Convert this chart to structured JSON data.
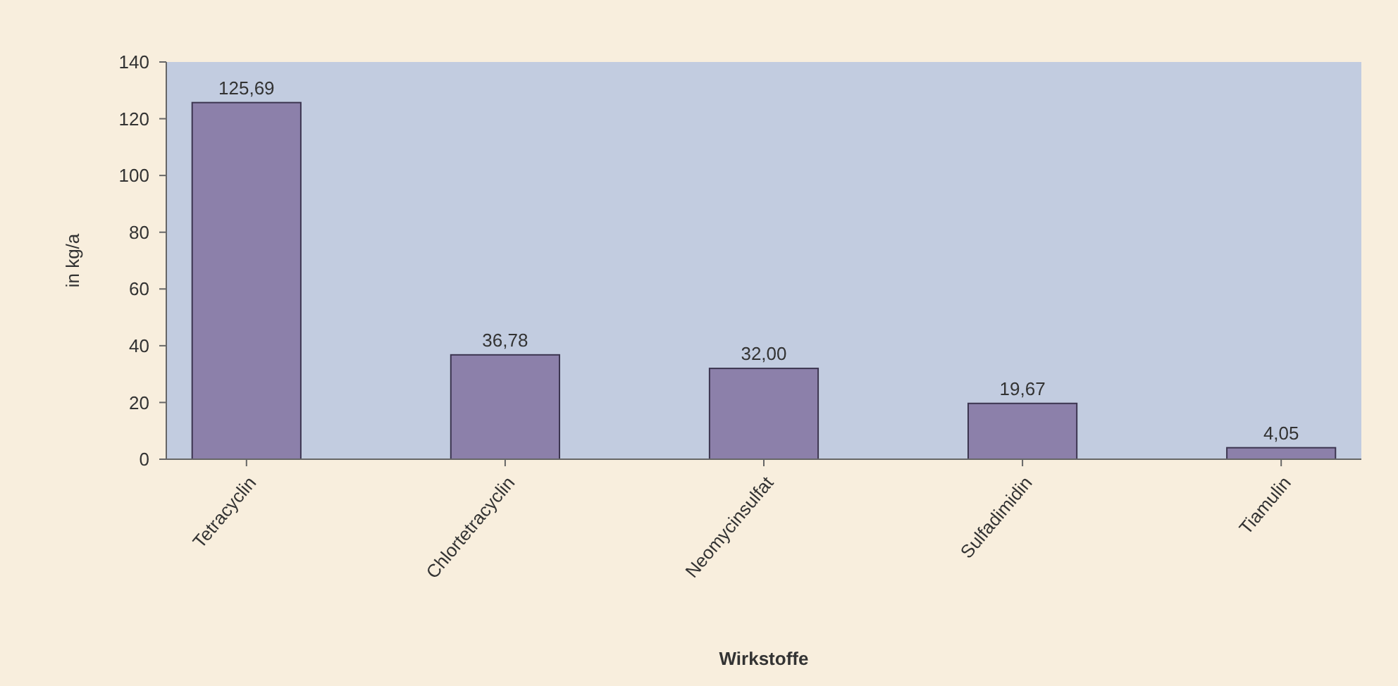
{
  "chart_data": {
    "type": "bar",
    "xlabel": "Wirkstoffe",
    "ylabel": "in kg/a",
    "categories": [
      "Tetracyclin",
      "Chlortetracyclin",
      "Neomycinsulfat",
      "Sulfadimidin",
      "Tiamulin"
    ],
    "values": [
      125.69,
      36.78,
      32.0,
      19.67,
      4.05
    ],
    "value_labels": [
      "125,69",
      "36,78",
      "32,00",
      "19,67",
      "4,05"
    ],
    "color": "#8c80aa",
    "ylim": [
      0,
      140
    ],
    "yticks": [
      0,
      20,
      40,
      60,
      80,
      100,
      120,
      140
    ],
    "grid": false
  }
}
